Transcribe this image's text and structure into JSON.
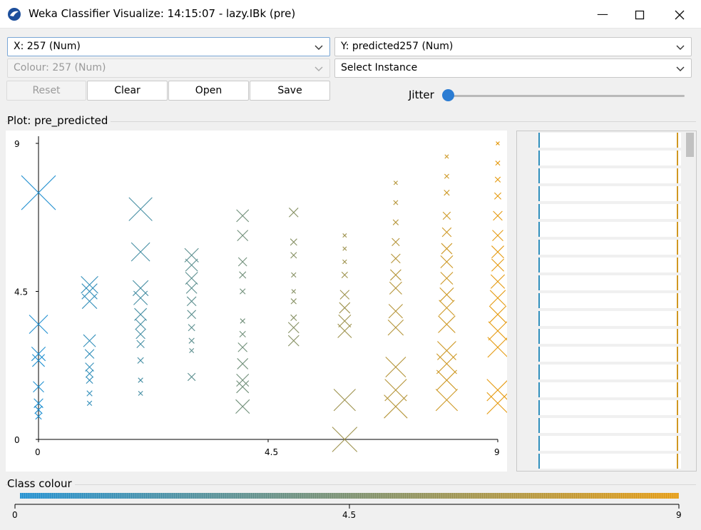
{
  "window": {
    "title": "Weka Classifier Visualize: 14:15:07 - lazy.IBk (pre)",
    "min_icon": "minimize-icon",
    "max_icon": "maximize-icon",
    "close_icon": "close-icon"
  },
  "controls": {
    "x_axis": "X: 257 (Num)",
    "y_axis": "Y: predicted257 (Num)",
    "colour": "Colour: 257 (Num)",
    "select_instance": "Select Instance",
    "reset_label": "Reset",
    "clear_label": "Clear",
    "open_label": "Open",
    "save_label": "Save",
    "jitter_label": "Jitter",
    "jitter_value": 0
  },
  "plot": {
    "group_label": "Plot: pre_predicted"
  },
  "class_colour": {
    "group_label": "Class colour",
    "ticks": [
      "0",
      "4.5",
      "9"
    ],
    "start_color": "#1f8fd0",
    "mid_color": "#7a8f6e",
    "end_color": "#e59a0f"
  },
  "chart_data": {
    "type": "scatter",
    "x_range": [
      0,
      9
    ],
    "y_range": [
      0,
      9
    ],
    "xticks": [
      "0",
      "4.5",
      "9"
    ],
    "yticks": [
      "0",
      "4.5",
      "9"
    ],
    "marker": "cross",
    "marker_size_meaning": "error",
    "points": [
      {
        "x": 0,
        "y": 7.5,
        "err": 1.0
      },
      {
        "x": 0,
        "y": 3.5,
        "err": 0.5
      },
      {
        "x": 0,
        "y": 2.6,
        "err": 0.35
      },
      {
        "x": 0,
        "y": 2.4,
        "err": 0.3
      },
      {
        "x": 0,
        "y": 1.6,
        "err": 0.25
      },
      {
        "x": 0,
        "y": 1.1,
        "err": 0.2
      },
      {
        "x": 0,
        "y": 0.9,
        "err": 0.15
      },
      {
        "x": 0,
        "y": 0.7,
        "err": 0.1
      },
      {
        "x": 1,
        "y": 4.7,
        "err": 0.45
      },
      {
        "x": 1,
        "y": 4.5,
        "err": 0.4
      },
      {
        "x": 1,
        "y": 4.2,
        "err": 0.38
      },
      {
        "x": 1,
        "y": 3.0,
        "err": 0.3
      },
      {
        "x": 1,
        "y": 2.6,
        "err": 0.2
      },
      {
        "x": 1,
        "y": 2.2,
        "err": 0.18
      },
      {
        "x": 1,
        "y": 2.0,
        "err": 0.15
      },
      {
        "x": 1,
        "y": 1.8,
        "err": 0.12
      },
      {
        "x": 1,
        "y": 1.4,
        "err": 0.08
      },
      {
        "x": 1,
        "y": 1.1,
        "err": 0.06
      },
      {
        "x": 2,
        "y": 7.0,
        "err": 0.65
      },
      {
        "x": 2,
        "y": 5.7,
        "err": 0.5
      },
      {
        "x": 2,
        "y": 4.6,
        "err": 0.4
      },
      {
        "x": 2,
        "y": 4.3,
        "err": 0.35
      },
      {
        "x": 2,
        "y": 3.8,
        "err": 0.3
      },
      {
        "x": 2,
        "y": 3.5,
        "err": 0.25
      },
      {
        "x": 2,
        "y": 3.2,
        "err": 0.2
      },
      {
        "x": 2,
        "y": 2.9,
        "err": 0.15
      },
      {
        "x": 2,
        "y": 2.4,
        "err": 0.1
      },
      {
        "x": 2,
        "y": 1.8,
        "err": 0.06
      },
      {
        "x": 2,
        "y": 1.4,
        "err": 0.05
      },
      {
        "x": 3,
        "y": 5.6,
        "err": 0.35
      },
      {
        "x": 3,
        "y": 5.3,
        "err": 0.3
      },
      {
        "x": 3,
        "y": 4.9,
        "err": 0.3
      },
      {
        "x": 3,
        "y": 4.6,
        "err": 0.25
      },
      {
        "x": 3,
        "y": 4.2,
        "err": 0.2
      },
      {
        "x": 3,
        "y": 3.8,
        "err": 0.18
      },
      {
        "x": 3,
        "y": 3.4,
        "err": 0.12
      },
      {
        "x": 3,
        "y": 3.0,
        "err": 0.08
      },
      {
        "x": 3,
        "y": 2.7,
        "err": 0.05
      },
      {
        "x": 3,
        "y": 1.9,
        "err": 0.15
      },
      {
        "x": 4,
        "y": 6.8,
        "err": 0.3
      },
      {
        "x": 4,
        "y": 6.2,
        "err": 0.25
      },
      {
        "x": 4,
        "y": 5.4,
        "err": 0.18
      },
      {
        "x": 4,
        "y": 5.0,
        "err": 0.12
      },
      {
        "x": 4,
        "y": 4.5,
        "err": 0.08
      },
      {
        "x": 4,
        "y": 3.6,
        "err": 0.06
      },
      {
        "x": 4,
        "y": 3.2,
        "err": 0.1
      },
      {
        "x": 4,
        "y": 2.8,
        "err": 0.2
      },
      {
        "x": 4,
        "y": 2.3,
        "err": 0.25
      },
      {
        "x": 4,
        "y": 1.8,
        "err": 0.3
      },
      {
        "x": 4,
        "y": 1.6,
        "err": 0.3
      },
      {
        "x": 4,
        "y": 1.0,
        "err": 0.35
      },
      {
        "x": 5,
        "y": 6.9,
        "err": 0.2
      },
      {
        "x": 5,
        "y": 6.0,
        "err": 0.12
      },
      {
        "x": 5,
        "y": 5.6,
        "err": 0.1
      },
      {
        "x": 5,
        "y": 5.0,
        "err": 0.06
      },
      {
        "x": 5,
        "y": 4.5,
        "err": 0.04
      },
      {
        "x": 5,
        "y": 4.2,
        "err": 0.08
      },
      {
        "x": 5,
        "y": 3.7,
        "err": 0.1
      },
      {
        "x": 5,
        "y": 3.4,
        "err": 0.25
      },
      {
        "x": 5,
        "y": 3.0,
        "err": 0.25
      },
      {
        "x": 6,
        "y": 6.2,
        "err": 0.03
      },
      {
        "x": 6,
        "y": 5.8,
        "err": 0.03
      },
      {
        "x": 6,
        "y": 5.4,
        "err": 0.04
      },
      {
        "x": 6,
        "y": 5.0,
        "err": 0.1
      },
      {
        "x": 6,
        "y": 4.4,
        "err": 0.2
      },
      {
        "x": 6,
        "y": 4.0,
        "err": 0.25
      },
      {
        "x": 6,
        "y": 3.6,
        "err": 0.3
      },
      {
        "x": 6,
        "y": 3.3,
        "err": 0.35
      },
      {
        "x": 6,
        "y": 1.2,
        "err": 0.6
      },
      {
        "x": 6,
        "y": 0.0,
        "err": 0.7
      },
      {
        "x": 7,
        "y": 7.8,
        "err": 0.03
      },
      {
        "x": 7,
        "y": 7.2,
        "err": 0.05
      },
      {
        "x": 7,
        "y": 6.6,
        "err": 0.08
      },
      {
        "x": 7,
        "y": 6.0,
        "err": 0.15
      },
      {
        "x": 7,
        "y": 5.5,
        "err": 0.2
      },
      {
        "x": 7,
        "y": 5.0,
        "err": 0.25
      },
      {
        "x": 7,
        "y": 4.6,
        "err": 0.3
      },
      {
        "x": 7,
        "y": 3.9,
        "err": 0.35
      },
      {
        "x": 7,
        "y": 3.4,
        "err": 0.4
      },
      {
        "x": 7,
        "y": 2.2,
        "err": 0.55
      },
      {
        "x": 7,
        "y": 1.5,
        "err": 0.6
      },
      {
        "x": 7,
        "y": 1.0,
        "err": 0.65
      },
      {
        "x": 8,
        "y": 8.6,
        "err": 0.03
      },
      {
        "x": 8,
        "y": 8.0,
        "err": 0.05
      },
      {
        "x": 8,
        "y": 7.5,
        "err": 0.08
      },
      {
        "x": 8,
        "y": 6.8,
        "err": 0.15
      },
      {
        "x": 8,
        "y": 6.3,
        "err": 0.2
      },
      {
        "x": 8,
        "y": 5.8,
        "err": 0.25
      },
      {
        "x": 8,
        "y": 5.4,
        "err": 0.3
      },
      {
        "x": 8,
        "y": 4.9,
        "err": 0.3
      },
      {
        "x": 8,
        "y": 4.4,
        "err": 0.35
      },
      {
        "x": 8,
        "y": 4.0,
        "err": 0.4
      },
      {
        "x": 8,
        "y": 3.5,
        "err": 0.45
      },
      {
        "x": 8,
        "y": 2.7,
        "err": 0.5
      },
      {
        "x": 8,
        "y": 2.3,
        "err": 0.55
      },
      {
        "x": 8,
        "y": 1.8,
        "err": 0.55
      },
      {
        "x": 8,
        "y": 1.2,
        "err": 0.6
      },
      {
        "x": 9,
        "y": 9.0,
        "err": 0.02
      },
      {
        "x": 9,
        "y": 8.4,
        "err": 0.05
      },
      {
        "x": 9,
        "y": 7.9,
        "err": 0.08
      },
      {
        "x": 9,
        "y": 7.4,
        "err": 0.12
      },
      {
        "x": 9,
        "y": 6.8,
        "err": 0.2
      },
      {
        "x": 9,
        "y": 6.2,
        "err": 0.25
      },
      {
        "x": 9,
        "y": 5.7,
        "err": 0.3
      },
      {
        "x": 9,
        "y": 5.3,
        "err": 0.3
      },
      {
        "x": 9,
        "y": 4.8,
        "err": 0.35
      },
      {
        "x": 9,
        "y": 4.3,
        "err": 0.4
      },
      {
        "x": 9,
        "y": 3.8,
        "err": 0.45
      },
      {
        "x": 9,
        "y": 3.3,
        "err": 0.5
      },
      {
        "x": 9,
        "y": 2.8,
        "err": 0.55
      },
      {
        "x": 9,
        "y": 1.5,
        "err": 0.6
      },
      {
        "x": 9,
        "y": 1.1,
        "err": 0.6
      }
    ]
  }
}
